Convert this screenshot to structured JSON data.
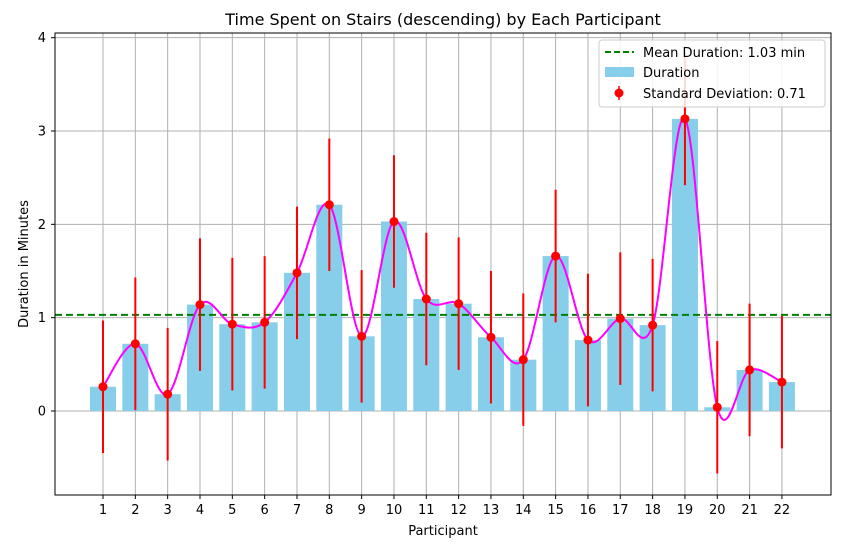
{
  "chart_data": {
    "type": "bar",
    "title": "Time Spent on Stairs (descending) by Each Participant",
    "xlabel": "Participant",
    "ylabel": "Duration in Minutes",
    "categories": [
      "1",
      "2",
      "3",
      "4",
      "5",
      "6",
      "7",
      "8",
      "9",
      "10",
      "11",
      "12",
      "13",
      "14",
      "15",
      "16",
      "17",
      "18",
      "19",
      "20",
      "21",
      "22"
    ],
    "series": [
      {
        "name": "Duration",
        "kind": "bar",
        "color": "#87ceeb",
        "values": [
          0.26,
          0.72,
          0.18,
          1.14,
          0.93,
          0.95,
          1.48,
          2.21,
          0.8,
          2.03,
          1.2,
          1.15,
          0.79,
          0.55,
          1.66,
          0.76,
          0.99,
          0.92,
          3.13,
          0.04,
          0.44,
          0.31
        ]
      },
      {
        "name": "Standard Deviation: 0.71",
        "kind": "errorbar",
        "color": "#ff0000",
        "error": 0.71
      },
      {
        "name": "Mean Duration: 1.03 min",
        "kind": "hline",
        "color": "#008000",
        "value": 1.03
      }
    ],
    "smooth_line_color": "#ff00ff",
    "ylim": [
      -0.9,
      4.05
    ],
    "yticks": [
      0,
      1,
      2,
      3,
      4
    ],
    "grid": true,
    "legend_position": "top-right"
  }
}
